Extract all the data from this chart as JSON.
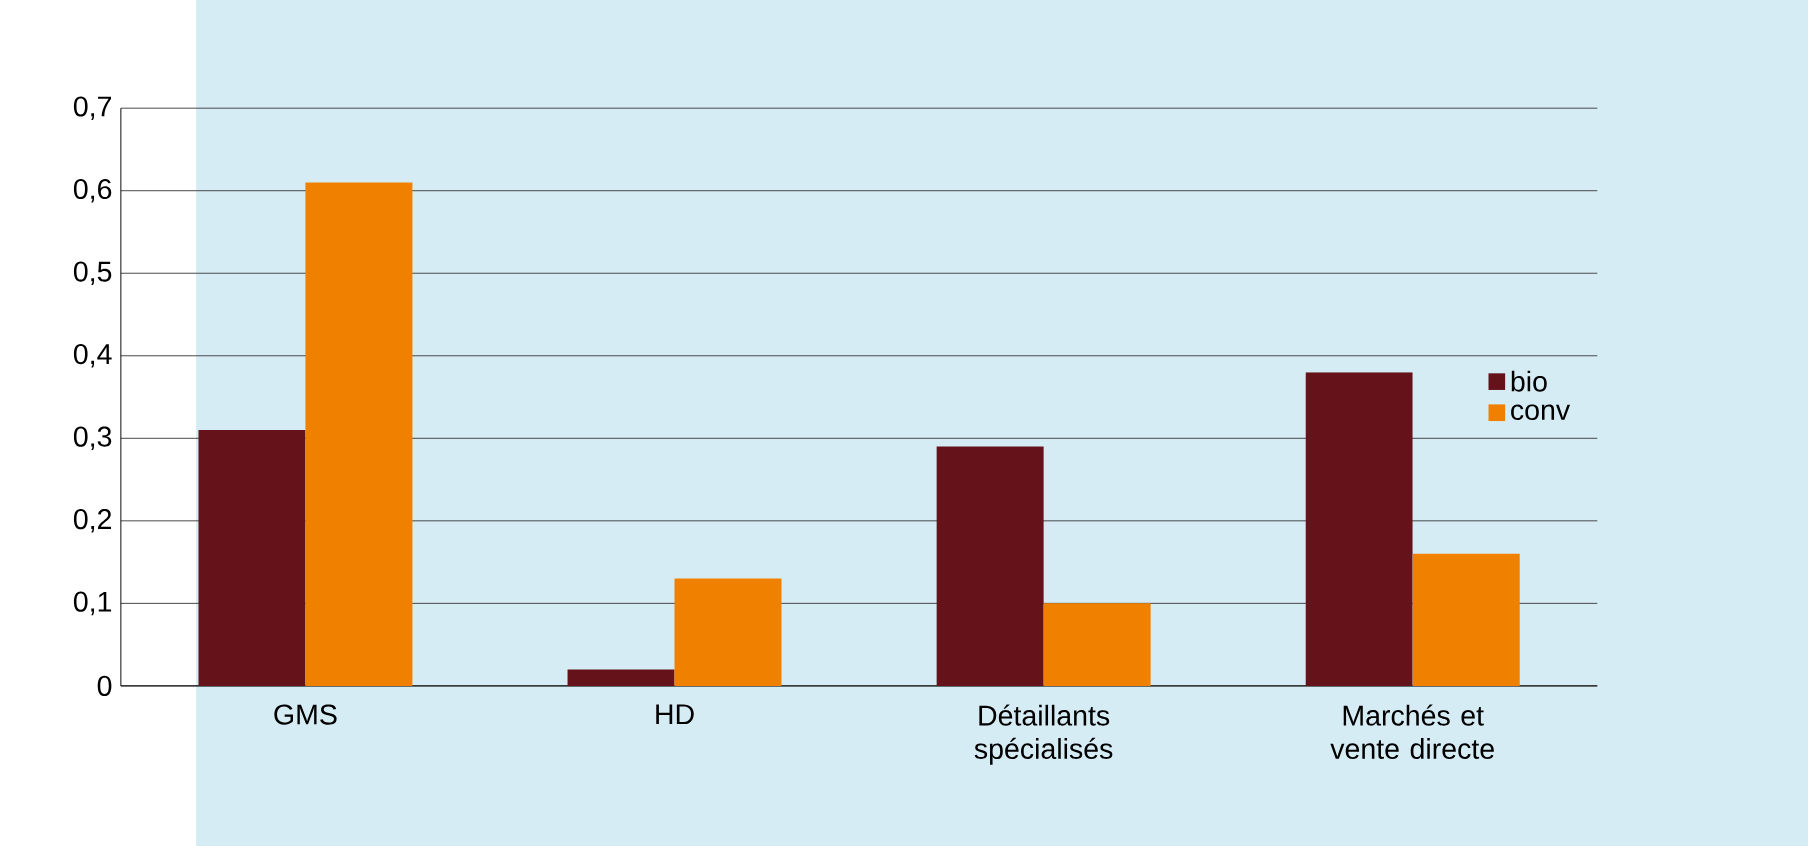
{
  "chart_data": {
    "type": "bar",
    "categories": [
      "GMS",
      "HD",
      "Détaillants spécialisés",
      "Marchés et vente directe"
    ],
    "series": [
      {
        "name": "bio",
        "color": "#65121a",
        "values": [
          0.31,
          0.02,
          0.29,
          0.38
        ]
      },
      {
        "name": "conv",
        "color": "#f08000",
        "values": [
          0.61,
          0.13,
          0.1,
          0.16
        ]
      }
    ],
    "ylim": [
      0,
      0.7
    ],
    "yticks": [
      {
        "value": 0,
        "label": "0"
      },
      {
        "value": 0.1,
        "label": "0,1"
      },
      {
        "value": 0.2,
        "label": "0,2"
      },
      {
        "value": 0.3,
        "label": "0,3"
      },
      {
        "value": 0.4,
        "label": "0,4"
      },
      {
        "value": 0.5,
        "label": "0,5"
      },
      {
        "value": 0.6,
        "label": "0,6"
      },
      {
        "value": 0.7,
        "label": "0,7"
      }
    ],
    "grid": "y",
    "legend": "right"
  }
}
